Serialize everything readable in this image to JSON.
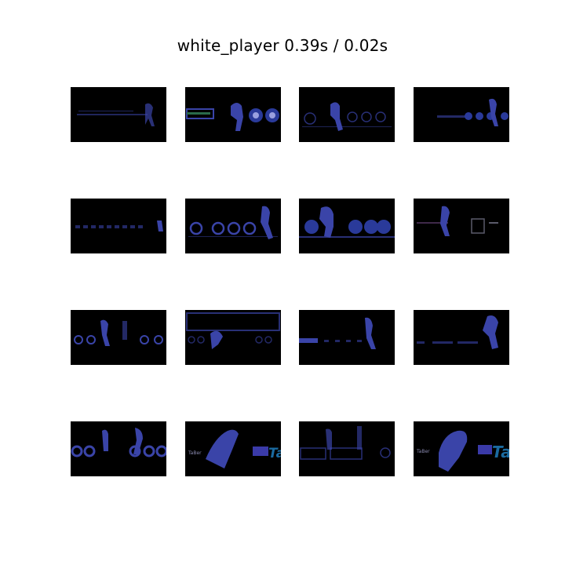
{
  "title": "white_player 0.39s / 0.02s",
  "colors": {
    "background": "#ffffff",
    "frame": "#000000",
    "player": "#3a44a8",
    "accent": "#1a6aa0"
  },
  "frames": [
    {
      "id": 1,
      "ocr": ""
    },
    {
      "id": 2,
      "ocr": ""
    },
    {
      "id": 3,
      "ocr": ""
    },
    {
      "id": 4,
      "ocr": ""
    },
    {
      "id": 5,
      "ocr": ""
    },
    {
      "id": 6,
      "ocr": ""
    },
    {
      "id": 7,
      "ocr": ""
    },
    {
      "id": 8,
      "ocr": ""
    },
    {
      "id": 9,
      "ocr": ""
    },
    {
      "id": 10,
      "ocr": ""
    },
    {
      "id": 11,
      "ocr": ""
    },
    {
      "id": 12,
      "ocr": ""
    },
    {
      "id": 13,
      "ocr": ""
    },
    {
      "id": 14,
      "ocr": "TaBer"
    },
    {
      "id": 15,
      "ocr": ""
    },
    {
      "id": 16,
      "ocr": "TaBer"
    }
  ]
}
